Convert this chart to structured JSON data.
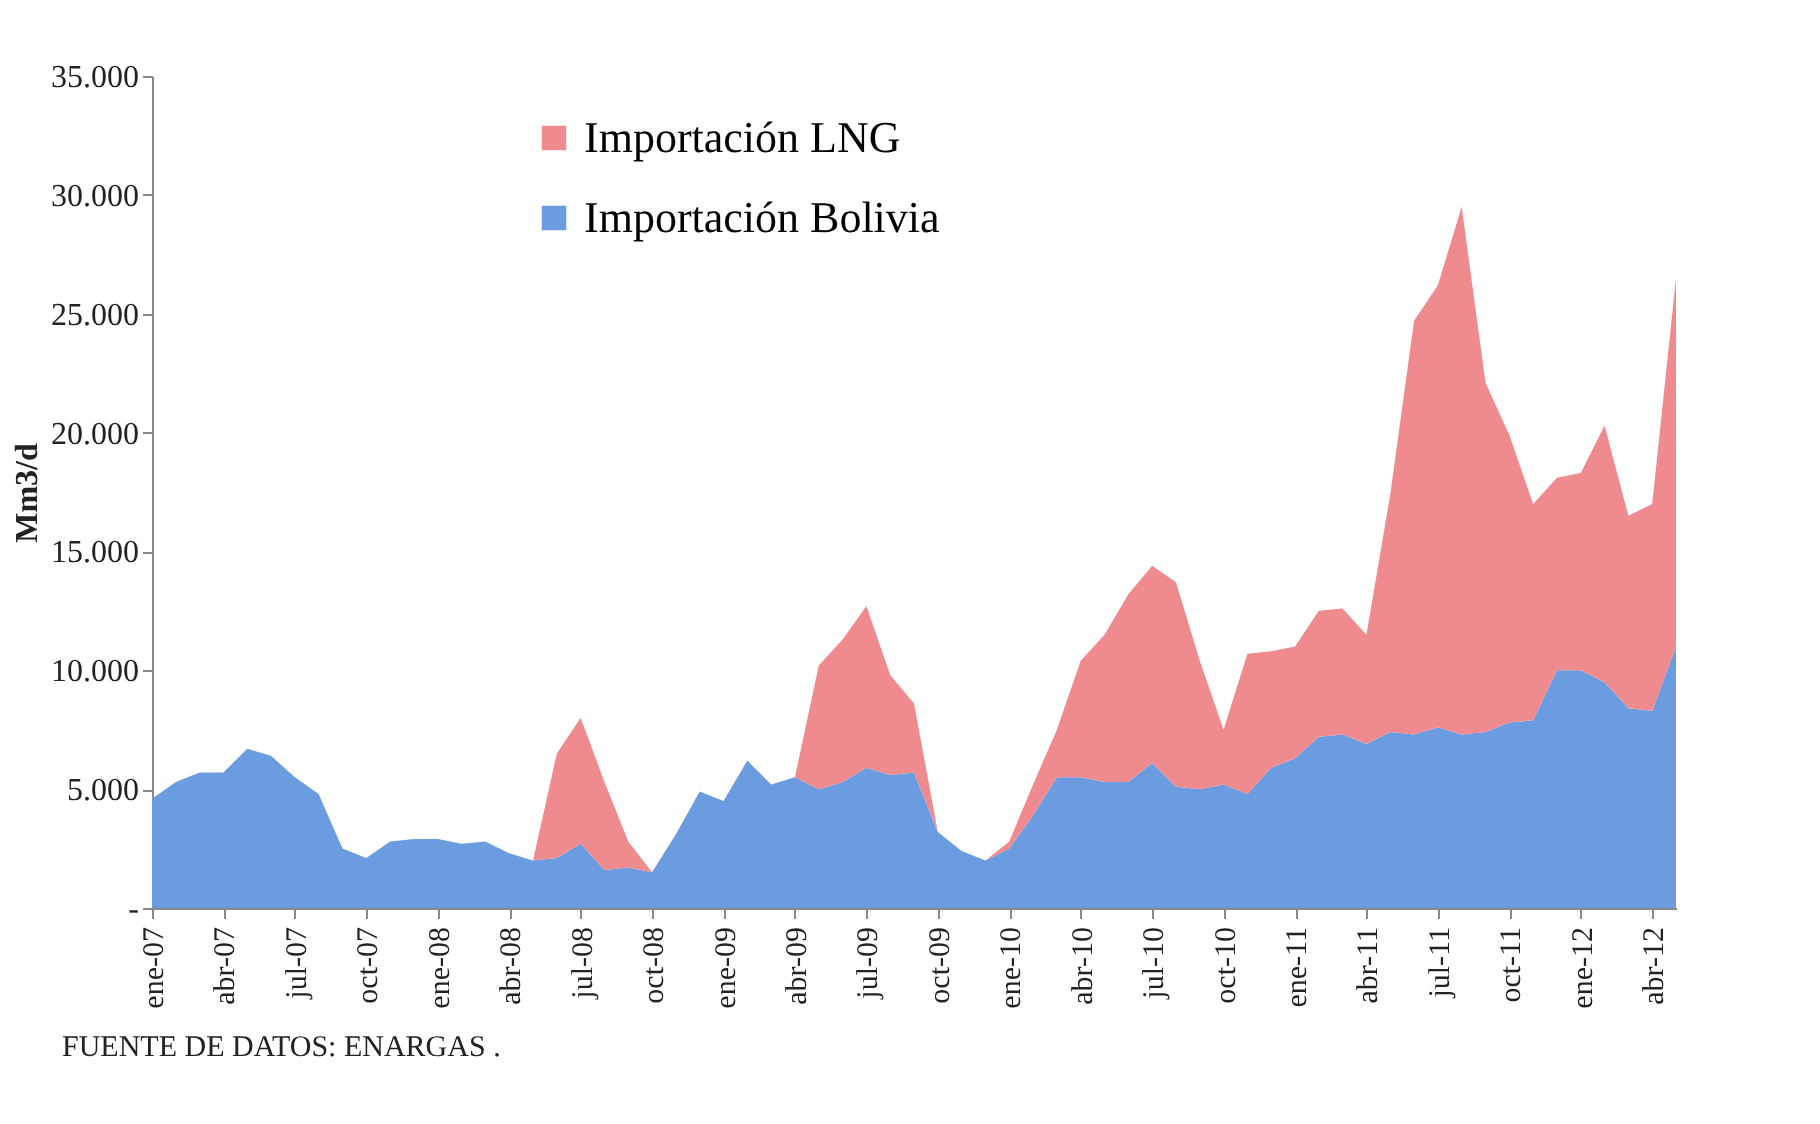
{
  "chart_data": {
    "type": "area",
    "stacked": true,
    "ylabel": "Mm3/d",
    "categories": [
      "ene-07",
      null,
      null,
      "abr-07",
      null,
      null,
      "jul-07",
      null,
      null,
      "oct-07",
      null,
      null,
      "ene-08",
      null,
      null,
      "abr-08",
      null,
      null,
      "jul-08",
      null,
      null,
      "oct-08",
      null,
      null,
      "ene-09",
      null,
      null,
      "abr-09",
      null,
      null,
      "jul-09",
      null,
      null,
      "oct-09",
      null,
      null,
      "ene-10",
      null,
      null,
      "abr-10",
      null,
      null,
      "jul-10",
      null,
      null,
      "oct-10",
      null,
      null,
      "ene-11",
      null,
      null,
      "abr-11",
      null,
      null,
      "jul-11",
      null,
      null,
      "oct-11",
      null,
      null,
      "ene-12",
      null,
      null,
      "abr-12",
      null
    ],
    "series": [
      {
        "name": "Importación Bolivia",
        "color": "#6c9ce0",
        "values": [
          4600,
          5300,
          5700,
          5700,
          6700,
          6400,
          5500,
          4800,
          2500,
          2100,
          2800,
          2900,
          2900,
          2700,
          2800,
          2300,
          2000,
          2100,
          2700,
          1600,
          1700,
          1500,
          3100,
          4900,
          4500,
          6200,
          5200,
          5500,
          5000,
          5300,
          5900,
          5600,
          5700,
          3200,
          2400,
          2000,
          2500,
          3900,
          5500,
          5500,
          5300,
          5300,
          6100,
          5100,
          5000,
          5200,
          4800,
          5900,
          6300,
          7200,
          7300,
          6900,
          7400,
          7300,
          7600,
          7300,
          7400,
          7800,
          7900,
          10000,
          10000,
          9500,
          8400,
          8300,
          11000
        ]
      },
      {
        "name": "Importación LNG",
        "color": "#ef8a8e",
        "values": [
          0,
          0,
          0,
          0,
          0,
          0,
          0,
          0,
          0,
          0,
          0,
          0,
          0,
          0,
          0,
          0,
          0,
          4400,
          5300,
          3700,
          1100,
          0,
          0,
          0,
          0,
          0,
          0,
          0,
          5200,
          6000,
          6800,
          4200,
          2900,
          0,
          0,
          0,
          300,
          1300,
          2000,
          4900,
          6200,
          7900,
          8300,
          8600,
          5400,
          2300,
          5900,
          4900,
          4700,
          5300,
          5300,
          4600,
          10000,
          17400,
          18600,
          22200,
          14700,
          12100,
          9100,
          8100,
          8300,
          10800,
          8100,
          8700,
          15500
        ]
      }
    ],
    "ylim": [
      0,
      35000
    ],
    "yticks": [
      {
        "value": 0,
        "label": "-"
      },
      {
        "value": 5000,
        "label": "5.000"
      },
      {
        "value": 10000,
        "label": "10.000"
      },
      {
        "value": 15000,
        "label": "15.000"
      },
      {
        "value": 20000,
        "label": "20.000"
      },
      {
        "value": 25000,
        "label": "25.000"
      },
      {
        "value": 30000,
        "label": "30.000"
      },
      {
        "value": 35000,
        "label": "35.000"
      }
    ],
    "legend": "top",
    "grid": false,
    "annotations": [
      "FUENTE DE DATOS: ENARGAS ."
    ]
  }
}
